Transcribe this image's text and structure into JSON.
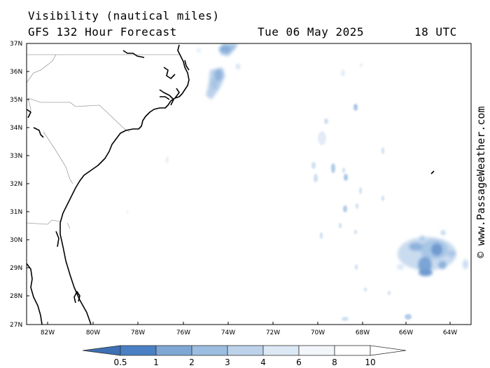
{
  "header": {
    "title": "Visibility (nautical miles)",
    "forecast": "GFS 132 Hour Forecast",
    "date": "Tue 06 May 2025",
    "time": "18 UTC"
  },
  "copyright": "© www.PassageWeather.com",
  "map": {
    "lat_labels": [
      "37N",
      "36N",
      "35N",
      "34N",
      "33N",
      "32N",
      "31N",
      "30N",
      "29N",
      "28N",
      "27N"
    ],
    "lon_labels": [
      "82W",
      "80W",
      "78W",
      "76W",
      "74W",
      "72W",
      "70W",
      "68W",
      "66W",
      "64W"
    ],
    "colors": {
      "coast": "#000000",
      "borders": "#a0a0a0",
      "low_visibility": "#3e78c0",
      "light_fog": "#c6dbef"
    }
  },
  "colorbar": {
    "labels": [
      "0.5",
      "1",
      "2",
      "3",
      "4",
      "6",
      "8",
      "10"
    ],
    "colors": [
      "#3d70b4",
      "#4a80c4",
      "#7ea7d6",
      "#9bbde0",
      "#bcd2ea",
      "#dde8f5",
      "#f2f6fb",
      "#ffffff"
    ]
  }
}
